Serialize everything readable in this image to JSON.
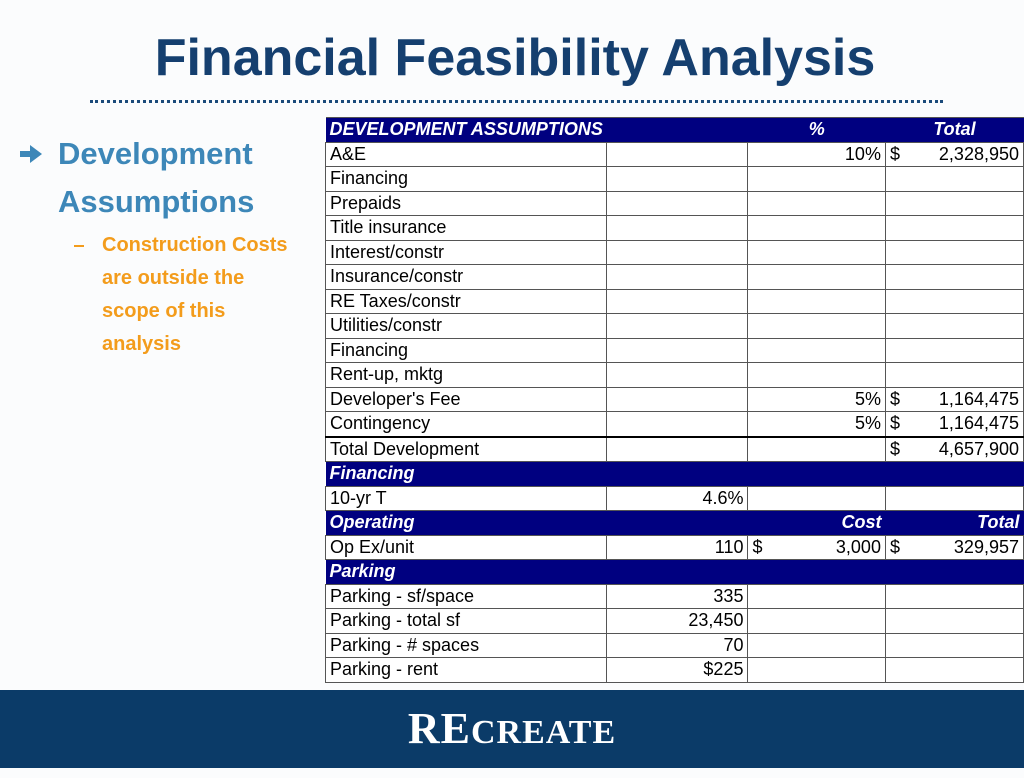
{
  "header": {
    "title": "Financial Feasibility Analysis"
  },
  "bullets": [
    {
      "text": "Development Assumptions",
      "sub": [
        "Construction Costs are outside the scope of this analysis"
      ]
    }
  ],
  "table": {
    "rows": [
      {
        "kind": "header",
        "cells": [
          "DEVELOPMENT ASSUMPTIONS",
          null,
          "%",
          "Total"
        ]
      },
      {
        "kind": "body",
        "cells": [
          "A&E",
          null,
          "10%",
          {
            "sign": "$",
            "amount": "2,328,950"
          }
        ]
      },
      {
        "kind": "body",
        "cells": [
          "Financing",
          null,
          null,
          null
        ]
      },
      {
        "kind": "body",
        "cells": [
          "Prepaids",
          null,
          null,
          null
        ]
      },
      {
        "kind": "body",
        "cells": [
          "Title insurance",
          null,
          null,
          null
        ]
      },
      {
        "kind": "body",
        "cells": [
          "Interest/constr",
          null,
          null,
          null
        ]
      },
      {
        "kind": "body",
        "cells": [
          "Insurance/constr",
          null,
          null,
          null
        ]
      },
      {
        "kind": "body",
        "cells": [
          "RE Taxes/constr",
          null,
          null,
          null
        ]
      },
      {
        "kind": "body",
        "cells": [
          "Utilities/constr",
          null,
          null,
          null
        ]
      },
      {
        "kind": "body",
        "cells": [
          "Financing",
          null,
          null,
          null
        ]
      },
      {
        "kind": "body",
        "cells": [
          "Rent-up, mktg",
          null,
          null,
          null
        ]
      },
      {
        "kind": "body",
        "cells": [
          "Developer's Fee",
          null,
          "5%",
          {
            "sign": "$",
            "amount": "1,164,475"
          }
        ]
      },
      {
        "kind": "body",
        "cells": [
          "Contingency",
          null,
          "5%",
          {
            "sign": "$",
            "amount": "1,164,475"
          }
        ]
      },
      {
        "kind": "total",
        "cells": [
          "Total Development",
          null,
          null,
          {
            "sign": "$",
            "amount": "4,657,900"
          }
        ]
      },
      {
        "kind": "header",
        "cells": [
          "Financing",
          null,
          null,
          null
        ]
      },
      {
        "kind": "body",
        "cells": [
          "10-yr T",
          "4.6%",
          null,
          null
        ]
      },
      {
        "kind": "header",
        "cells": [
          "Operating",
          null,
          "Cost",
          "Total"
        ]
      },
      {
        "kind": "body",
        "cells": [
          "Op Ex/unit",
          "110",
          {
            "sign": "$",
            "amount": "3,000"
          },
          {
            "sign": "$",
            "amount": "329,957"
          }
        ]
      },
      {
        "kind": "header",
        "cells": [
          "Parking",
          null,
          null,
          null
        ]
      },
      {
        "kind": "body",
        "cells": [
          "Parking - sf/space",
          "335",
          null,
          null
        ]
      },
      {
        "kind": "body",
        "cells": [
          "Parking - total sf",
          "23,450",
          null,
          null
        ]
      },
      {
        "kind": "body",
        "cells": [
          "Parking - # spaces",
          "70",
          null,
          null
        ]
      },
      {
        "kind": "body",
        "cells": [
          "Parking - rent",
          "$225",
          null,
          null
        ]
      }
    ]
  },
  "footer": {
    "logo_prefix": "RE",
    "logo_rest": "CREATE"
  }
}
